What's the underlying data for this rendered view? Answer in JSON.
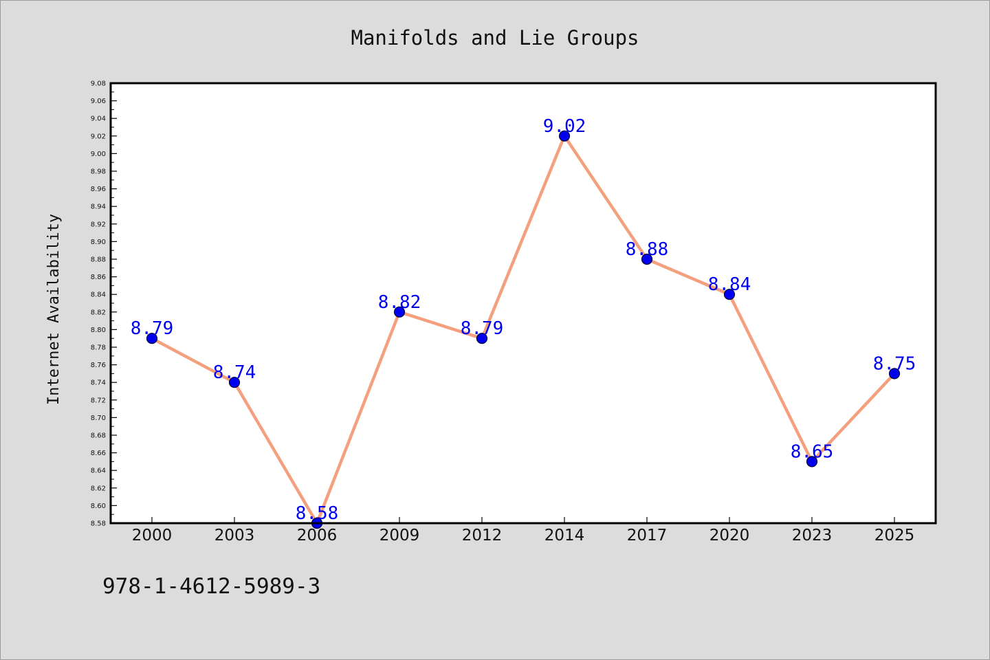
{
  "chart_data": {
    "type": "line",
    "title": "Manifolds and Lie Groups",
    "xlabel": "",
    "ylabel": "Internet Availability",
    "categories": [
      "2000",
      "2003",
      "2006",
      "2009",
      "2012",
      "2014",
      "2017",
      "2020",
      "2023",
      "2025"
    ],
    "series": [
      {
        "values": [
          8.79,
          8.74,
          8.58,
          8.82,
          8.79,
          9.02,
          8.88,
          8.84,
          8.65,
          8.75
        ]
      }
    ],
    "data_labels": [
      "8.79",
      "8.74",
      "8.58",
      "8.82",
      "8.79",
      "9.02",
      "8.88",
      "8.84",
      "8.65",
      "8.75"
    ],
    "ylim": [
      8.58,
      9.08
    ],
    "yticks": [
      "8.58",
      "8.60",
      "8.62",
      "8.64",
      "8.66",
      "8.68",
      "8.70",
      "8.72",
      "8.74",
      "8.76",
      "8.78",
      "8.80",
      "8.82",
      "8.84",
      "8.86",
      "8.88",
      "8.90",
      "8.92",
      "8.94",
      "8.96",
      "8.98",
      "9.00",
      "9.02",
      "9.04",
      "9.06",
      "9.08"
    ],
    "grid": false,
    "legend": "none",
    "colors": {
      "line": "#f4a07e",
      "marker": "#0000ee",
      "marker_edge": "#000033",
      "label": "#0000ee",
      "plot_background": "#ffffff",
      "figure_background": "#dcdcdc"
    }
  },
  "footer": {
    "isbn": "978-1-4612-5989-3"
  }
}
